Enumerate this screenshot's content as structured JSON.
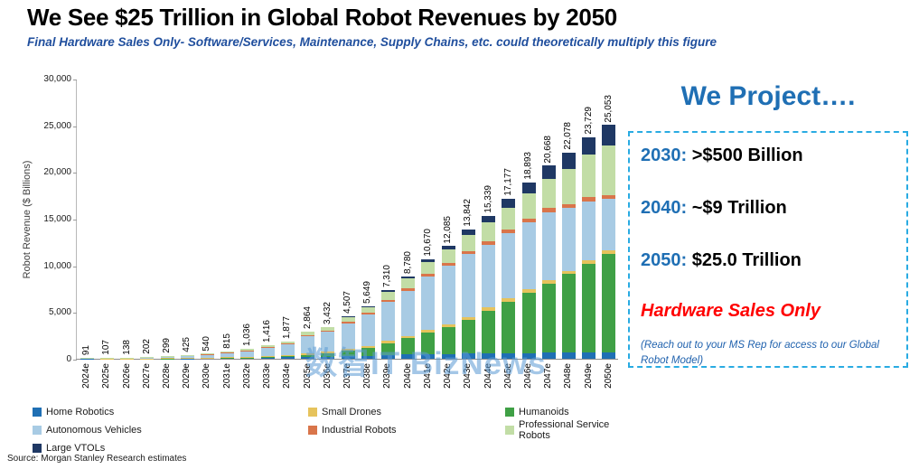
{
  "header": {
    "title": "We See $25 Trillion in Global Robot Revenues by 2050",
    "subtitle": "Final Hardware Sales Only- Software/Services, Maintenance, Supply Chains, etc. could theoretically multiply this figure"
  },
  "chart_data": {
    "type": "bar",
    "stacked": true,
    "grid": false,
    "legend_position": "bottom",
    "ylabel": "Robot Revenue ($ Billions)",
    "xlabel": "",
    "ylim": [
      0,
      30000
    ],
    "yticks": [
      0,
      5000,
      10000,
      15000,
      20000,
      25000,
      30000
    ],
    "ytick_labels": [
      "0",
      "5,000",
      "10,000",
      "15,000",
      "20,000",
      "25,000",
      "30,000"
    ],
    "categories": [
      "2024e",
      "2025e",
      "2026e",
      "2027e",
      "2028e",
      "2029e",
      "2030e",
      "2031e",
      "2032e",
      "2033e",
      "2034e",
      "2035e",
      "2036e",
      "2037e",
      "2038e",
      "2039e",
      "2040e",
      "2041e",
      "2042e",
      "2043e",
      "2044e",
      "2045e",
      "2046e",
      "2047e",
      "2048e",
      "2049e",
      "2050e"
    ],
    "totals": [
      91,
      107,
      138,
      202,
      299,
      425,
      540,
      815,
      1036,
      1416,
      1877,
      2864,
      3432,
      4507,
      5649,
      7310,
      8780,
      10670,
      12085,
      13842,
      15339,
      17177,
      18893,
      20668,
      22078,
      23729,
      25053
    ],
    "total_labels": [
      "91",
      "107",
      "138",
      "202",
      "299",
      "425",
      "540",
      "815",
      "1,036",
      "1,416",
      "1,877",
      "2,864",
      "3,432",
      "4,507",
      "5,649",
      "7,310",
      "8,780",
      "10,670",
      "12,085",
      "13,842",
      "15,339",
      "17,177",
      "18,893",
      "20,668",
      "22,078",
      "23,729",
      "25,053"
    ],
    "series": [
      {
        "name": "Home Robotics",
        "color": "#1F6FB4",
        "values": [
          9,
          11,
          14,
          20,
          30,
          42,
          54,
          77,
          93,
          120,
          150,
          215,
          240,
          293,
          339,
          402,
          439,
          480,
          508,
          540,
          568,
          601,
          624,
          641,
          662,
          688,
          702
        ]
      },
      {
        "name": "Humanoids",
        "color": "#3FA045",
        "values": [
          1,
          2,
          3,
          5,
          9,
          15,
          22,
          37,
          52,
          78,
          113,
          200,
          343,
          541,
          791,
          1243,
          1756,
          2347,
          2900,
          3599,
          4602,
          5497,
          6424,
          7441,
          8390,
          9492,
          10522
        ]
      },
      {
        "name": "Small Drones",
        "color": "#E6C35C",
        "values": [
          7,
          9,
          11,
          16,
          24,
          34,
          43,
          61,
          73,
          92,
          113,
          160,
          172,
          203,
          226,
          256,
          263,
          288,
          302,
          319,
          322,
          344,
          359,
          372,
          375,
          380,
          376
        ]
      },
      {
        "name": "Autonomous Vehicles",
        "color": "#A8CBE4",
        "values": [
          58,
          66,
          85,
          125,
          182,
          258,
          324,
          497,
          639,
          885,
          1186,
          1816,
          2118,
          2726,
          3350,
          4166,
          4811,
          5688,
          6224,
          6754,
          6718,
          6990,
          7197,
          7233,
          6689,
          6311,
          5561
        ]
      },
      {
        "name": "Industrial Robots",
        "color": "#D9754A",
        "values": [
          5,
          6,
          8,
          12,
          18,
          25,
          32,
          45,
          55,
          71,
          90,
          129,
          147,
          180,
          209,
          256,
          281,
          320,
          338,
          346,
          368,
          395,
          416,
          434,
          442,
          451,
          376
        ]
      },
      {
        "name": "Professional Service Robots",
        "color": "#C2DDA6",
        "values": [
          11,
          13,
          17,
          24,
          36,
          51,
          65,
          98,
          124,
          170,
          225,
          344,
          412,
          541,
          678,
          877,
          1054,
          1280,
          1450,
          1730,
          1994,
          2319,
          2645,
          3100,
          3754,
          4509,
          5261
        ]
      },
      {
        "name": "Large VTOLs",
        "color": "#1F3864",
        "values": [
          0,
          0,
          0,
          0,
          0,
          0,
          0,
          0,
          0,
          0,
          0,
          0,
          0,
          23,
          56,
          110,
          176,
          267,
          363,
          554,
          767,
          1031,
          1228,
          1447,
          1766,
          1898,
          2255
        ]
      }
    ],
    "legend_order": [
      "Home Robotics",
      "Small Drones",
      "Humanoids",
      "Autonomous Vehicles",
      "Industrial Robots",
      "Professional Service Robots",
      "Large VTOLs"
    ]
  },
  "projection_panel": {
    "heading": "We Project….",
    "items": [
      {
        "year": "2030:",
        "value": ">$500 Billion"
      },
      {
        "year": "2040:",
        "value": "~$9 Trillion"
      },
      {
        "year": "2050:",
        "value": "$25.0 Trillion"
      }
    ],
    "hardware_note": "Hardware Sales Only",
    "footnote": "(Reach out to your MS Rep for access to our Global Robot Model)"
  },
  "watermark": "数智IT BizNews",
  "source": "Source: Morgan Stanley Research estimates",
  "colors": {
    "accent_blue": "#1F6FB4",
    "subtitle_blue": "#1F4E9D",
    "box_border_cyan": "#29ABE2",
    "hardware_red": "#FF0000"
  }
}
